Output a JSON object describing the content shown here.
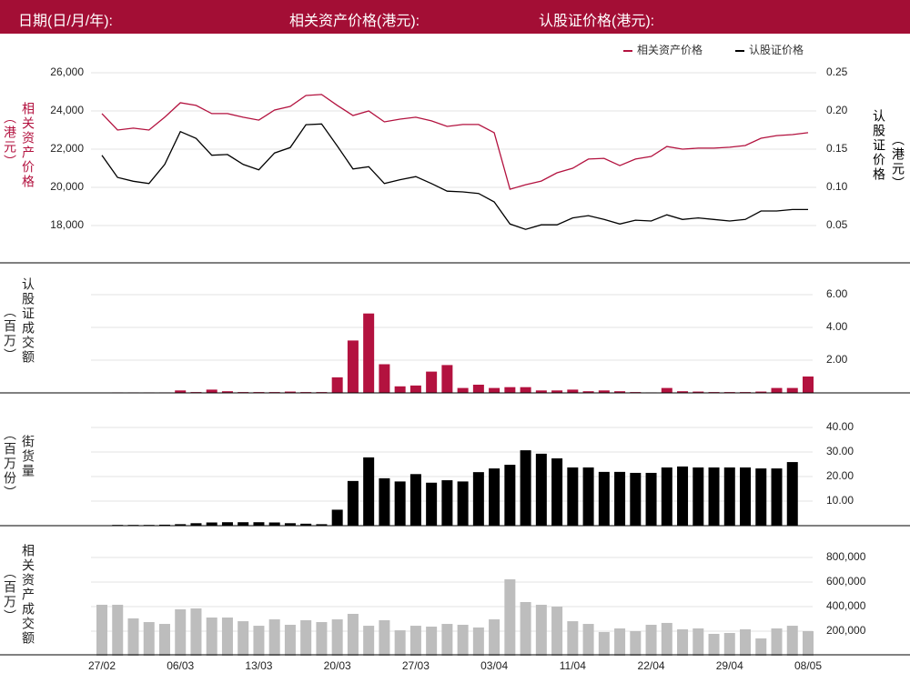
{
  "header": {
    "labels": [
      "日期(日/月/年):",
      "相关资产价格(港元):",
      "认股证价格(港元):"
    ]
  },
  "chart_data": [
    {
      "type": "line",
      "y_label": [
        "相关资产价格",
        "（港元）"
      ],
      "y2_label": [
        "认股证价格",
        "（港元）"
      ],
      "ylim": [
        17000,
        26500
      ],
      "yticks": [
        {
          "value": 18000,
          "label": "18,000"
        },
        {
          "value": 20000,
          "label": "20,000"
        },
        {
          "value": 22000,
          "label": "22,000"
        },
        {
          "value": 24000,
          "label": "24,000"
        },
        {
          "value": 26000,
          "label": "26,000"
        }
      ],
      "y2lim": [
        0.025,
        0.2625
      ],
      "y2ticks": [
        0.05,
        {
          "value": 0.1,
          "label": "0.10"
        },
        0.15,
        {
          "value": 0.2,
          "label": "0.20"
        },
        0.25
      ],
      "grid": true,
      "legend": "top-right",
      "series": [
        {
          "name": "相关资产价格",
          "color": "#b3123f",
          "values": [
            23860,
            23000,
            23100,
            23000,
            23670,
            24430,
            24290,
            23860,
            23860,
            23670,
            23520,
            24050,
            24240,
            24810,
            24860,
            24290,
            23760,
            24000,
            23430,
            23570,
            23670,
            23480,
            23190,
            23290,
            23290,
            22860,
            19900,
            20140,
            20330,
            20760,
            21000,
            21480,
            21520,
            21140,
            21480,
            21620,
            22140,
            22000,
            22050,
            22050,
            22100,
            22190,
            22570,
            22710,
            22760,
            22860
          ]
        },
        {
          "name": "认股证价格",
          "color": "#000000",
          "axis": "y2",
          "values": [
            0.142,
            0.113,
            0.108,
            0.105,
            0.13,
            0.173,
            0.164,
            0.142,
            0.143,
            0.13,
            0.123,
            0.145,
            0.152,
            0.182,
            0.183,
            0.154,
            0.124,
            0.127,
            0.105,
            0.11,
            0.114,
            0.105,
            0.095,
            0.094,
            0.092,
            0.081,
            0.052,
            0.045,
            0.051,
            0.051,
            0.06,
            0.063,
            0.058,
            0.052,
            0.057,
            0.056,
            0.064,
            0.058,
            0.06,
            0.058,
            0.056,
            0.058,
            0.069,
            0.069,
            0.071,
            0.071
          ]
        }
      ]
    },
    {
      "type": "bar",
      "y_label": [
        "认股证成交额",
        "（百万）"
      ],
      "ylim": [
        0,
        6
      ],
      "yticks": [
        {
          "value": 2,
          "label": "2.00"
        },
        {
          "value": 4,
          "label": "4.00"
        },
        {
          "value": 6,
          "label": "6.00"
        }
      ],
      "grid": true,
      "color": "#b3123f",
      "values": [
        0,
        0.03,
        0.03,
        0.03,
        0.03,
        0.15,
        0.05,
        0.2,
        0.1,
        0.05,
        0.05,
        0.05,
        0.08,
        0.05,
        0.05,
        0.95,
        3.2,
        4.85,
        1.75,
        0.4,
        0.45,
        1.3,
        1.7,
        0.3,
        0.5,
        0.3,
        0.35,
        0.35,
        0.15,
        0.15,
        0.2,
        0.1,
        0.15,
        0.1,
        0.05,
        0.03,
        0.3,
        0.1,
        0.08,
        0.05,
        0.05,
        0.05,
        0.08,
        0.3,
        0.3,
        1.0
      ]
    },
    {
      "type": "bar",
      "y_label": [
        "街货量",
        "（百万份）"
      ],
      "ylim": [
        0,
        40
      ],
      "yticks": [
        {
          "value": 10,
          "label": "10.00"
        },
        {
          "value": 20,
          "label": "20.00"
        },
        {
          "value": 30,
          "label": "30.00"
        },
        {
          "value": 40,
          "label": "40.00"
        }
      ],
      "grid": true,
      "color": "#000000",
      "values": [
        0,
        0.3,
        0.3,
        0.3,
        0.4,
        0.6,
        1.0,
        1.3,
        1.4,
        1.4,
        1.4,
        1.3,
        1.0,
        0.8,
        0.6,
        6.5,
        18.2,
        27.8,
        19.3,
        18,
        21,
        17.5,
        18.5,
        18,
        21.8,
        23.3,
        24.8,
        30.7,
        29.3,
        27.4,
        23.7,
        23.7,
        21.9,
        21.9,
        21.5,
        21.5,
        23.7,
        24.1,
        23.7,
        23.7,
        23.7,
        23.7,
        23.3,
        23.3,
        25.9,
        null
      ]
    },
    {
      "type": "bar",
      "y_label": [
        "相关资产成交额",
        "（百万）"
      ],
      "ylim": [
        0,
        800000
      ],
      "yticks": [
        {
          "value": 200000,
          "label": "200,000"
        },
        {
          "value": 400000,
          "label": "400,000"
        },
        {
          "value": 600000,
          "label": "600,000"
        },
        {
          "value": 800000,
          "label": "800,000"
        }
      ],
      "grid": true,
      "color": "#bdbdbd",
      "categories": [
        "27/02",
        null,
        null,
        null,
        null,
        "06/03",
        null,
        null,
        null,
        null,
        "13/03",
        null,
        null,
        null,
        null,
        "20/03",
        null,
        null,
        null,
        null,
        "27/03",
        null,
        null,
        null,
        null,
        "03/04",
        null,
        null,
        null,
        null,
        "11/04",
        null,
        null,
        null,
        null,
        "22/04",
        null,
        null,
        null,
        null,
        "29/04",
        null,
        null,
        null,
        null,
        "08/05"
      ],
      "values": [
        415000,
        415000,
        304000,
        274000,
        259000,
        378000,
        385000,
        311000,
        311000,
        281000,
        244000,
        296000,
        252000,
        289000,
        274000,
        296000,
        341000,
        244000,
        289000,
        207000,
        244000,
        237000,
        259000,
        252000,
        230000,
        296000,
        622000,
        437000,
        415000,
        400000,
        281000,
        259000,
        193000,
        222000,
        200000,
        252000,
        267000,
        215000,
        222000,
        178000,
        185000,
        215000,
        141000,
        222000,
        244000,
        200000
      ]
    }
  ]
}
